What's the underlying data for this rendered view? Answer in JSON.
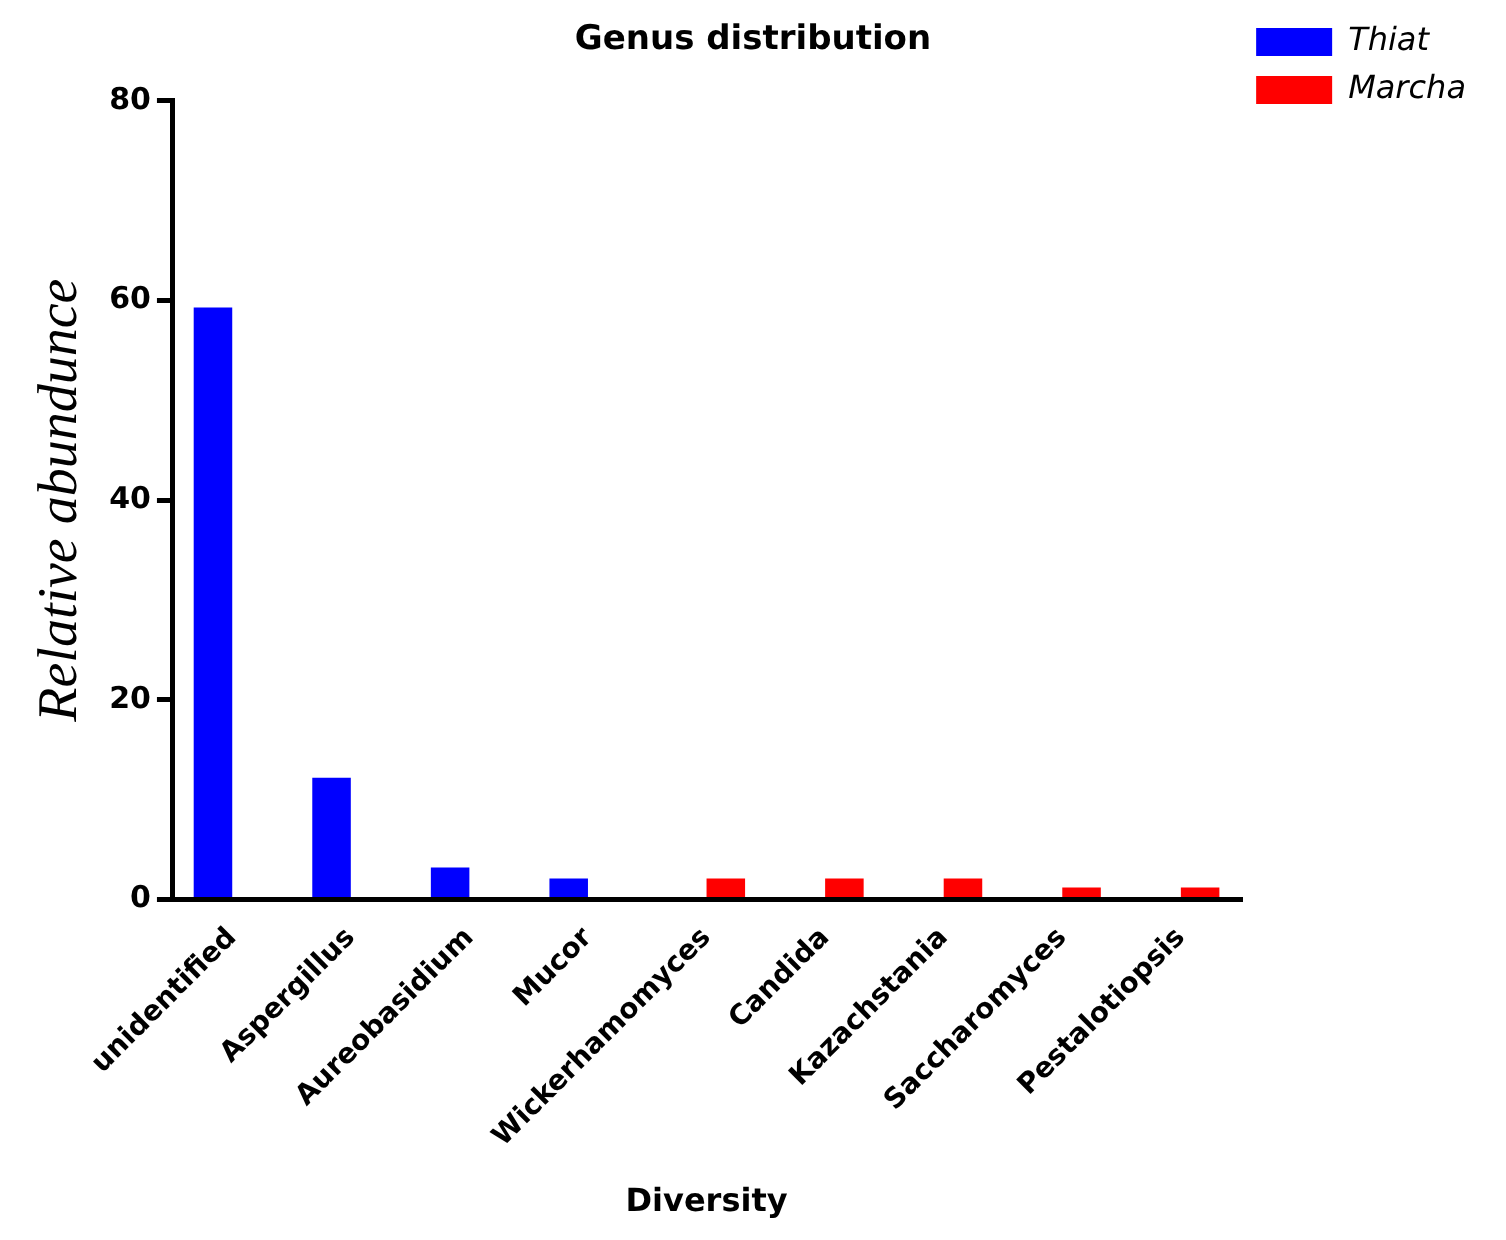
{
  "chart_data": {
    "type": "bar",
    "title": "Genus distribution",
    "xlabel": "Diversity",
    "ylabel": "Relative abundunce",
    "categories": [
      "unidentified",
      "Aspergillus",
      "Aureobasidium",
      "Mucor",
      "Wickerhamomyces",
      "Candida",
      "Kazachstania",
      "Saccharomyces",
      "Pestalotiopsis"
    ],
    "series": [
      {
        "name": "Thiat",
        "color": "#0000ff",
        "values": [
          59.3,
          12.2,
          3.2,
          2.1,
          null,
          null,
          null,
          null,
          null
        ]
      },
      {
        "name": "Marcha",
        "color": "#ff0000",
        "values": [
          null,
          null,
          null,
          null,
          2.1,
          2.1,
          2.1,
          1.2,
          1.2
        ]
      }
    ],
    "ylim": [
      0,
      80
    ],
    "yticks": [
      0,
      20,
      40,
      60,
      80
    ],
    "grid": false,
    "legend": "right"
  }
}
